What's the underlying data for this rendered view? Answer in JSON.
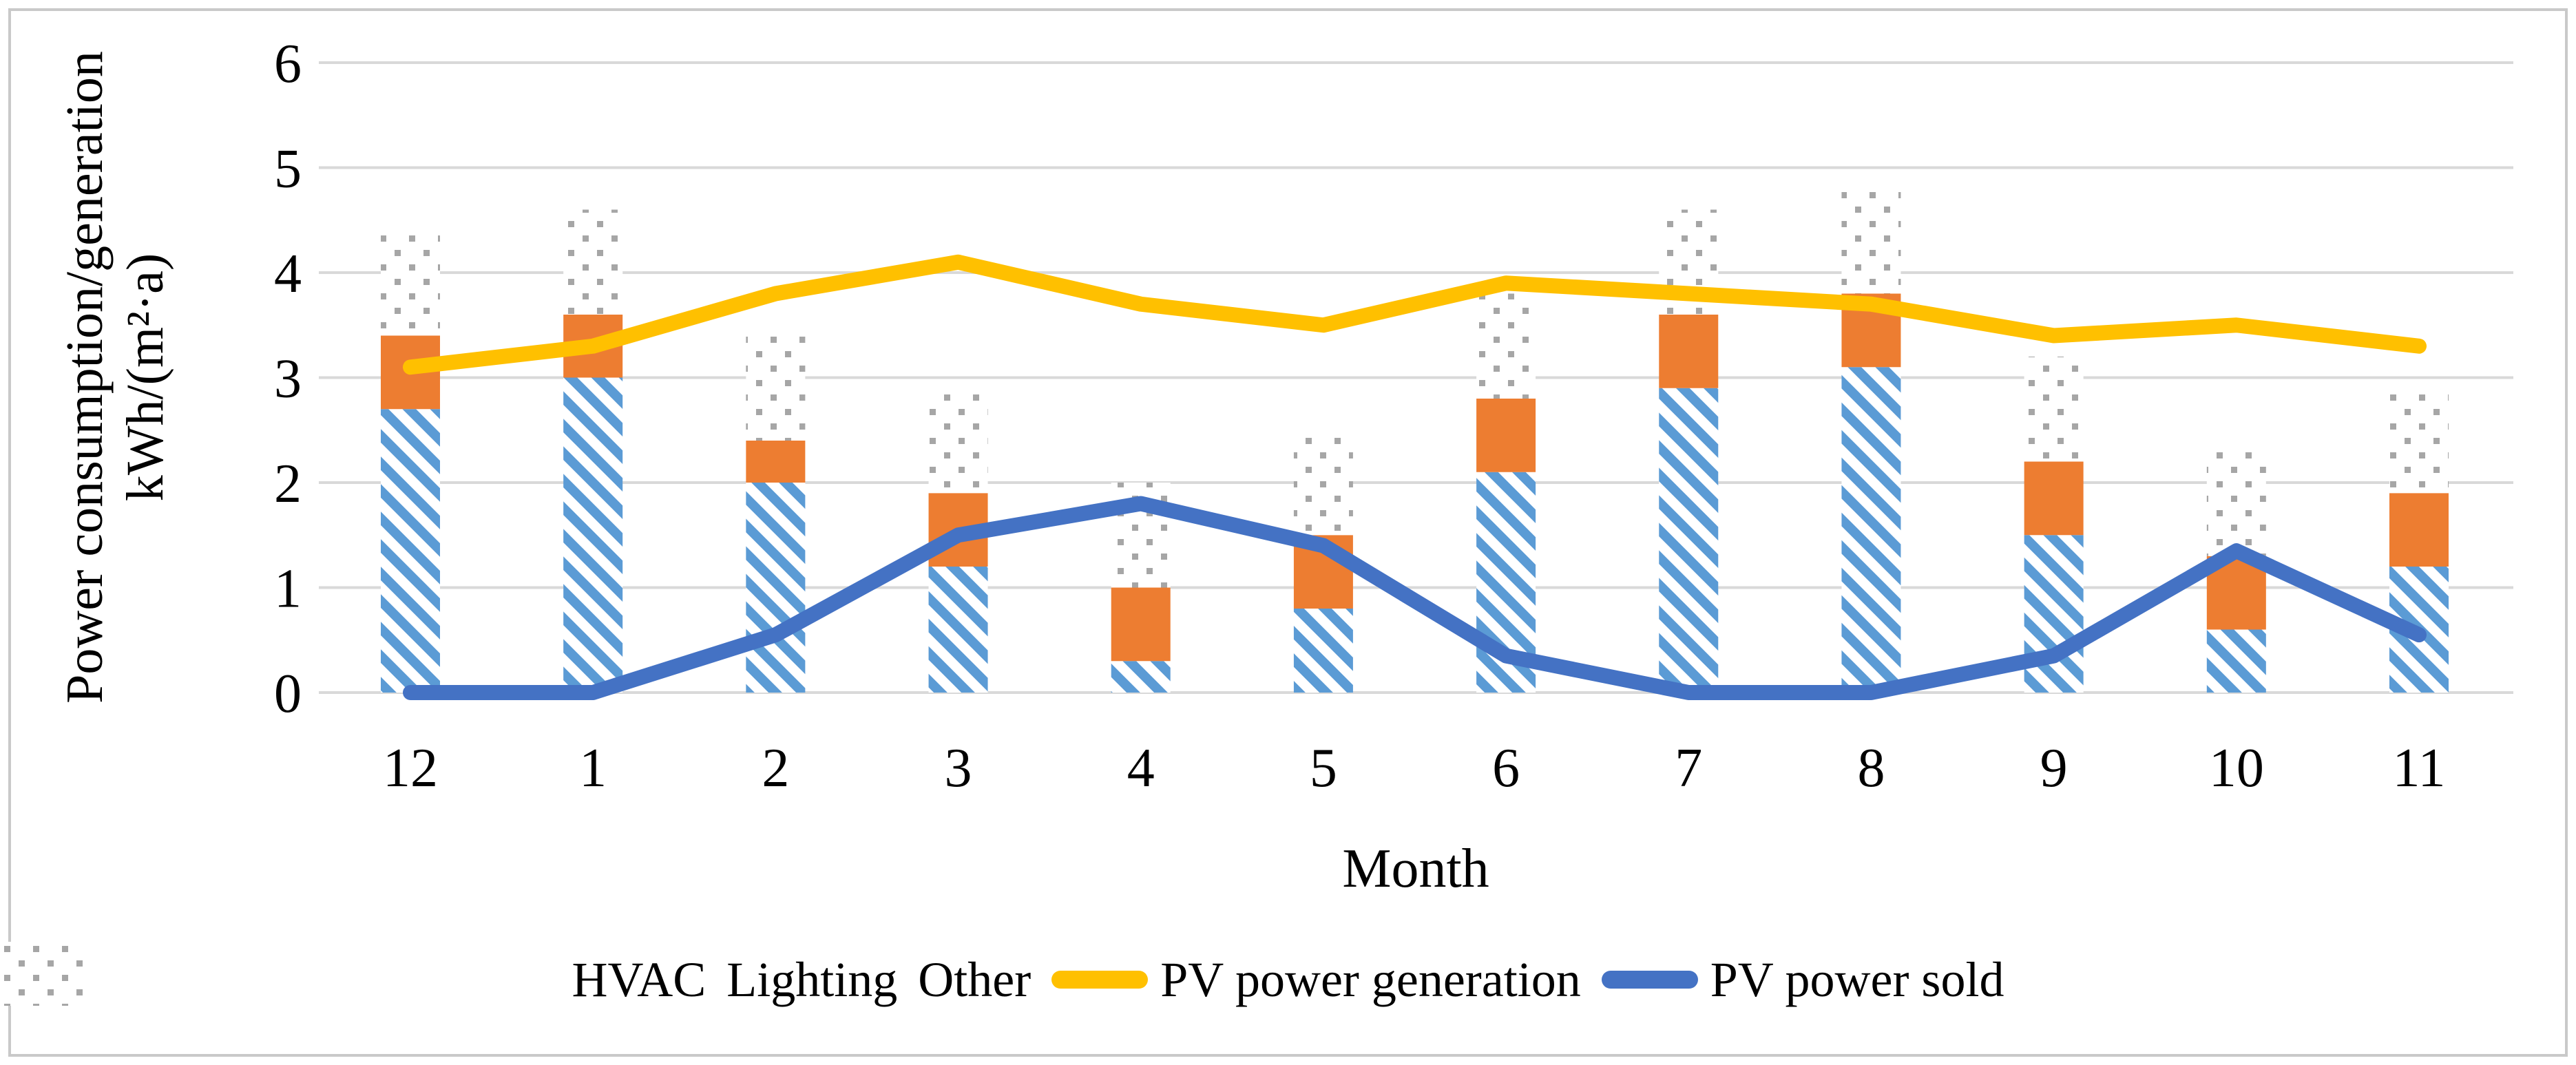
{
  "figure": {
    "background": "#FFFFFF",
    "border_color": "#C9C9C9",
    "text_color": "#000000"
  },
  "chart_data": {
    "type": "combo: stacked bar + line",
    "title": "",
    "xlabel": "Month",
    "ylabel": "Power consumption/generation",
    "ylabel_units": "kWh/(m²·a)",
    "categories": [
      "12",
      "1",
      "2",
      "3",
      "4",
      "5",
      "6",
      "7",
      "8",
      "9",
      "10",
      "11"
    ],
    "series": [
      {
        "name": "HVAC",
        "chart": "bar-stacked",
        "fill": "diagonal-stripes",
        "color": "#5B9BD5",
        "values": [
          2.7,
          3.0,
          2.0,
          1.2,
          0.3,
          0.8,
          2.1,
          2.9,
          3.1,
          1.5,
          0.6,
          1.2
        ]
      },
      {
        "name": "Lighting",
        "chart": "bar-stacked",
        "fill": "solid",
        "color": "#ED7D31",
        "values": [
          0.7,
          0.6,
          0.4,
          0.7,
          0.7,
          0.7,
          0.7,
          0.7,
          0.7,
          0.7,
          0.7,
          0.7
        ]
      },
      {
        "name": "Other",
        "chart": "bar-stacked",
        "fill": "dots",
        "color": "#A6A6A6",
        "values": [
          1.0,
          1.0,
          1.0,
          1.0,
          1.0,
          1.0,
          1.0,
          1.0,
          1.0,
          1.0,
          1.0,
          1.0
        ]
      },
      {
        "name": "PV power generation",
        "chart": "line",
        "color": "#FFC000",
        "values": [
          3.1,
          3.3,
          3.8,
          4.1,
          3.7,
          3.5,
          3.9,
          3.8,
          3.7,
          3.4,
          3.5,
          3.3
        ]
      },
      {
        "name": "PV power sold",
        "chart": "line",
        "color": "#4472C4",
        "values": [
          0,
          0,
          0.55,
          1.5,
          1.8,
          1.4,
          0.35,
          0,
          0,
          0.35,
          1.35,
          0.55
        ]
      }
    ],
    "stack_totals": [
      4.4,
      4.6,
      3.4,
      2.9,
      2.0,
      2.5,
      3.8,
      4.6,
      4.8,
      3.2,
      2.3,
      2.9
    ],
    "ylim": [
      0,
      6
    ],
    "yticks": [
      0,
      1,
      2,
      3,
      4,
      5,
      6
    ],
    "grid": true,
    "gridline_color": "#D9D9D9",
    "legend_position": "bottom"
  }
}
